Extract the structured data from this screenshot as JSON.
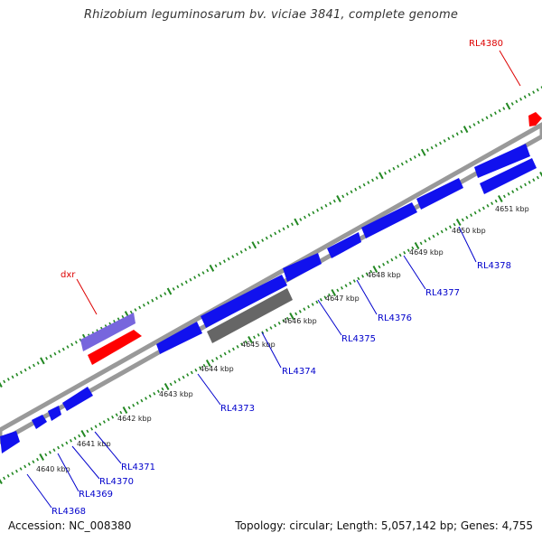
{
  "title": "Rhizobium leguminosarum bv. viciae 3841, complete genome",
  "footer": {
    "accession": "Accession: NC_008380",
    "summary": "Topology: circular; Length: 5,057,142 bp; Genes: 4,755"
  },
  "colors": {
    "forward_cds": "#1111ee",
    "reverse_cds": "#1111ee",
    "other_gene": "#666666",
    "pseudogene": "#7766dd",
    "rna_feature": "#ff0000",
    "backbone": "#999999",
    "tick": "#228822",
    "gene_label": "#0000cc",
    "highlight_label": "#dd0000"
  },
  "ticks": [
    "4640 kbp",
    "4641 kbp",
    "4642 kbp",
    "4643 kbp",
    "4644 kbp",
    "4645 kbp",
    "4646 kbp",
    "4647 kbp",
    "4648 kbp",
    "4649 kbp",
    "4650 kbp",
    "4651 kbp"
  ],
  "gene_labels": [
    "RL4368",
    "RL4369",
    "RL4370",
    "RL4371",
    "RL4373",
    "RL4374",
    "RL4375",
    "RL4376",
    "RL4377",
    "RL4378"
  ],
  "highlight_labels": [
    "dxr",
    "RL4380"
  ]
}
